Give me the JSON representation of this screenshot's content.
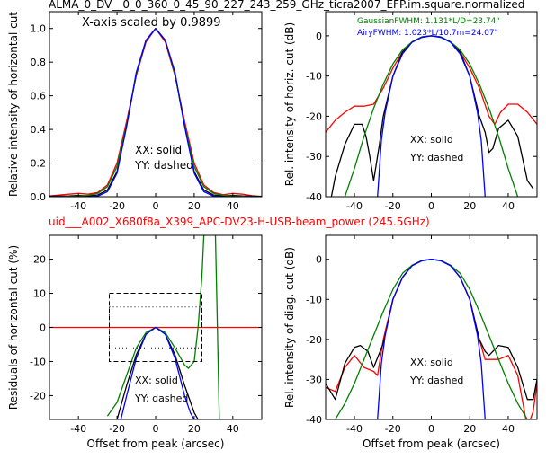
{
  "title_top": "ALMA_0_DV__0_0_360_0_45_90_227_243_259_GHz_ticra2007_EFP.im.square.normalized",
  "title_mid": "uid___A002_X680f8a_X399_APC-DV23-H-USB-beam_power (245.5GHz)",
  "colors": {
    "red": "#ff0000",
    "black": "#000000",
    "green": "#008000",
    "blue": "#0000ff"
  },
  "chart_data": [
    {
      "type": "line",
      "panel": "top-left",
      "ylabel": "Relative intensity of horizontal cut",
      "xlim": [
        -55,
        55
      ],
      "ylim": [
        0,
        1.1
      ],
      "xticks": [
        -40,
        -20,
        0,
        20,
        40
      ],
      "yticks": [
        0.0,
        0.2,
        0.4,
        0.6,
        0.8,
        1.0
      ],
      "annotations": [
        "X-axis scaled by 0.9899",
        "XX: solid",
        "YY: dashed"
      ],
      "series": [
        {
          "color": "red",
          "x": [
            -55,
            -45,
            -40,
            -35,
            -30,
            -25,
            -20,
            -15,
            -10,
            -5,
            0,
            5,
            10,
            15,
            20,
            25,
            30,
            35,
            40,
            45,
            50,
            55
          ],
          "y": [
            0.005,
            0.015,
            0.02,
            0.015,
            0.025,
            0.07,
            0.2,
            0.45,
            0.72,
            0.92,
            1.0,
            0.92,
            0.72,
            0.45,
            0.2,
            0.07,
            0.025,
            0.012,
            0.02,
            0.015,
            0.006,
            0.002
          ]
        },
        {
          "color": "black",
          "x": [
            -55,
            -45,
            -40,
            -35,
            -30,
            -25,
            -20,
            -15,
            -10,
            -5,
            0,
            5,
            10,
            15,
            20,
            25,
            30,
            35,
            40,
            45,
            50,
            55
          ],
          "y": [
            0.003,
            0.005,
            0.008,
            0.005,
            0.01,
            0.04,
            0.15,
            0.42,
            0.73,
            0.93,
            1.0,
            0.93,
            0.73,
            0.42,
            0.15,
            0.04,
            0.01,
            0.005,
            0.008,
            0.005,
            0.003,
            0.001
          ]
        },
        {
          "color": "green",
          "x": [
            -55,
            -45,
            -40,
            -35,
            -30,
            -25,
            -20,
            -15,
            -10,
            -5,
            0,
            5,
            10,
            15,
            20,
            25,
            30,
            35,
            40,
            45,
            50,
            55
          ],
          "y": [
            0.0,
            0.002,
            0.004,
            0.008,
            0.02,
            0.06,
            0.18,
            0.43,
            0.73,
            0.93,
            1.0,
            0.93,
            0.73,
            0.43,
            0.18,
            0.06,
            0.02,
            0.008,
            0.004,
            0.002,
            0.0,
            0.0
          ]
        },
        {
          "color": "blue",
          "x": [
            -55,
            -45,
            -40,
            -35,
            -30,
            -25,
            -20,
            -15,
            -10,
            -5,
            0,
            5,
            10,
            15,
            20,
            25,
            30,
            35,
            40,
            45,
            50,
            55
          ],
          "y": [
            0.0,
            0.0,
            0.0,
            0.0,
            0.003,
            0.03,
            0.14,
            0.42,
            0.74,
            0.93,
            1.0,
            0.93,
            0.74,
            0.42,
            0.14,
            0.03,
            0.003,
            0.0,
            0.0,
            0.0,
            0.0,
            0.0
          ]
        }
      ]
    },
    {
      "type": "line",
      "panel": "top-right",
      "ylabel": "Rel. intensity of horiz. cut (dB)",
      "xlim": [
        -55,
        55
      ],
      "ylim": [
        -40,
        6
      ],
      "xticks": [
        -40,
        -20,
        0,
        20,
        40
      ],
      "yticks": [
        0,
        -10,
        -20,
        -30,
        -40
      ],
      "legend": [
        "GaussianFWHM: 1.131*L/D=23.74\"",
        "AiryFWHM: 1.023*L/10.7m=24.07\""
      ],
      "annotations": [
        "XX: solid",
        "YY: dashed"
      ],
      "series": [
        {
          "color": "red",
          "x": [
            -55,
            -50,
            -45,
            -40,
            -35,
            -30,
            -25,
            -20,
            -15,
            -10,
            -5,
            0,
            5,
            10,
            15,
            20,
            25,
            30,
            33,
            36,
            40,
            45,
            50,
            55
          ],
          "y": [
            -24,
            -21,
            -19,
            -17.5,
            -17.5,
            -17,
            -13,
            -8,
            -4,
            -1.5,
            -0.3,
            0,
            -0.3,
            -1.5,
            -4,
            -8,
            -13,
            -20,
            -22,
            -19,
            -17,
            -17,
            -19,
            -22
          ]
        },
        {
          "color": "black",
          "x": [
            -52,
            -50,
            -45,
            -40,
            -36,
            -34,
            -32,
            -30,
            -27,
            -25,
            -20,
            -15,
            -10,
            -5,
            0,
            5,
            10,
            15,
            20,
            25,
            28,
            30,
            32,
            35,
            40,
            45,
            50,
            53
          ],
          "y": [
            -40,
            -35,
            -27,
            -22,
            -22,
            -25,
            -30,
            -36,
            -27,
            -20,
            -10,
            -4,
            -1.5,
            -0.3,
            0,
            -0.3,
            -1.5,
            -4,
            -10,
            -20,
            -24,
            -29,
            -28,
            -23,
            -21,
            -25,
            -36,
            -38
          ]
        },
        {
          "color": "green",
          "x": [
            -45,
            -40,
            -35,
            -30,
            -25,
            -20,
            -15,
            -10,
            -5,
            0,
            5,
            10,
            15,
            20,
            25,
            30,
            35,
            40,
            45
          ],
          "y": [
            -40,
            -33,
            -25,
            -18,
            -12,
            -7,
            -3.5,
            -1.5,
            -0.3,
            0,
            -0.3,
            -1.5,
            -3.5,
            -7,
            -12,
            -18,
            -25,
            -33,
            -40
          ]
        },
        {
          "color": "blue",
          "x": [
            -28,
            -26,
            -24,
            -20,
            -15,
            -10,
            -5,
            0,
            5,
            10,
            15,
            20,
            24,
            26,
            28
          ],
          "y": [
            -40,
            -26,
            -19,
            -10,
            -4.5,
            -1.6,
            -0.4,
            0,
            -0.4,
            -1.6,
            -4.5,
            -10,
            -19,
            -26,
            -40
          ]
        }
      ]
    },
    {
      "type": "line",
      "panel": "bottom-left",
      "xlabel": "Offset from peak (arcsec)",
      "ylabel": "Residuals of horizontal cut (%)",
      "xlim": [
        -55,
        55
      ],
      "ylim": [
        -27,
        27
      ],
      "xticks": [
        -40,
        -20,
        0,
        20,
        40
      ],
      "yticks": [
        20,
        10,
        0,
        -10,
        -20
      ],
      "annotations": [
        "XX: solid",
        "YY: dashed"
      ],
      "series": [
        {
          "color": "red",
          "x": [
            -55,
            55
          ],
          "y": [
            0,
            0
          ]
        },
        {
          "color": "black",
          "x": [
            -20,
            -15,
            -10,
            -5,
            0,
            5,
            10,
            15,
            20,
            22
          ],
          "y": [
            -27,
            -17,
            -8,
            -2,
            0,
            -2,
            -8,
            -17,
            -25,
            -27
          ]
        },
        {
          "color": "green",
          "x": [
            -25,
            -20,
            -15,
            -10,
            -5,
            0,
            5,
            10,
            15,
            17,
            20,
            22,
            24,
            25,
            26
          ],
          "y": [
            -26,
            -22,
            -14,
            -6,
            -1.5,
            0,
            -1.5,
            -6,
            -11,
            -12,
            -10,
            0,
            15,
            27,
            27
          ]
        },
        {
          "color": "green",
          "x": [
            31,
            32,
            33
          ],
          "y": [
            27,
            0,
            -27
          ]
        },
        {
          "color": "blue",
          "x": [
            -18,
            -15,
            -10,
            -5,
            0,
            5,
            10,
            15,
            18,
            20
          ],
          "y": [
            -27,
            -20,
            -9,
            -2,
            0,
            -2,
            -9,
            -20,
            -25,
            -27
          ]
        }
      ],
      "boxes": [
        {
          "style": "dashed",
          "x": [
            -24,
            24
          ],
          "y": [
            -10,
            10
          ]
        },
        {
          "style": "dotted",
          "x": [
            -24,
            24
          ],
          "y": [
            -6,
            6
          ]
        }
      ]
    },
    {
      "type": "line",
      "panel": "bottom-right",
      "xlabel": "Offset from peak (arcsec)",
      "ylabel": "Rel. intensity of diag. cut (dB)",
      "xlim": [
        -55,
        55
      ],
      "ylim": [
        -40,
        6
      ],
      "xticks": [
        -40,
        -20,
        0,
        20,
        40
      ],
      "yticks": [
        0,
        -10,
        -20,
        -30,
        -40
      ],
      "annotations": [
        "XX: solid",
        "YY: dashed"
      ],
      "series": [
        {
          "color": "red",
          "x": [
            -55,
            -50,
            -45,
            -40,
            -35,
            -30,
            -28,
            -25,
            -20,
            -15,
            -10,
            -5,
            0,
            5,
            10,
            15,
            20,
            25,
            28,
            31,
            35,
            40,
            45,
            50,
            53,
            55
          ],
          "y": [
            -32,
            -33,
            -27,
            -24,
            -27,
            -28,
            -29,
            -20,
            -10,
            -4.5,
            -1.5,
            -0.3,
            0,
            -0.3,
            -1.5,
            -4.5,
            -10,
            -20,
            -25,
            -25,
            -25,
            -24,
            -29,
            -42,
            -38,
            -31
          ]
        },
        {
          "color": "black",
          "x": [
            -55,
            -50,
            -45,
            -40,
            -37,
            -33,
            -30,
            -25,
            -20,
            -15,
            -10,
            -5,
            0,
            5,
            10,
            15,
            20,
            25,
            28,
            30,
            35,
            40,
            45,
            50,
            53,
            55
          ],
          "y": [
            -31,
            -35,
            -26,
            -22,
            -21.5,
            -23,
            -27,
            -21,
            -10,
            -4.5,
            -1.5,
            -0.3,
            0,
            -0.3,
            -1.5,
            -4.5,
            -10,
            -20,
            -23,
            -24,
            -21.5,
            -22,
            -27,
            -35,
            -35,
            -30
          ]
        },
        {
          "color": "green",
          "x": [
            -50,
            -45,
            -40,
            -35,
            -30,
            -25,
            -20,
            -15,
            -10,
            -5,
            0,
            5,
            10,
            15,
            20,
            25,
            30,
            35,
            40,
            45,
            50
          ],
          "y": [
            -40,
            -36,
            -31,
            -25,
            -19,
            -13,
            -7.5,
            -3.5,
            -1.5,
            -0.3,
            0,
            -0.3,
            -1.5,
            -3.5,
            -7.5,
            -13,
            -19,
            -25,
            -31,
            -36,
            -40
          ]
        },
        {
          "color": "blue",
          "x": [
            -28,
            -26,
            -24,
            -20,
            -15,
            -10,
            -5,
            0,
            5,
            10,
            15,
            20,
            24,
            26,
            28
          ],
          "y": [
            -40,
            -26,
            -19,
            -10,
            -4.5,
            -1.6,
            -0.4,
            0,
            -0.4,
            -1.6,
            -4.5,
            -10,
            -19,
            -26,
            -40
          ]
        }
      ]
    }
  ]
}
